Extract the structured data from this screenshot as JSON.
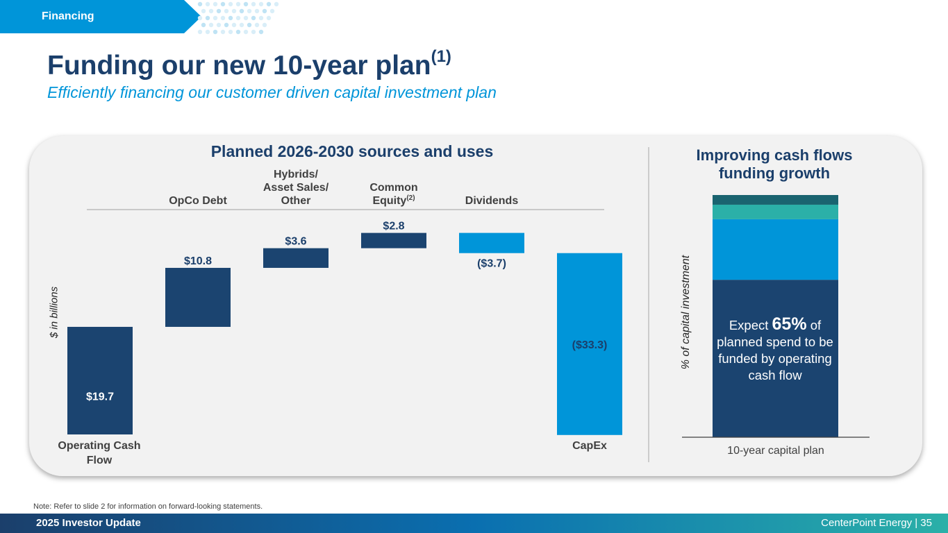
{
  "header": {
    "section_tag": "Financing",
    "title": "Funding our new 10-year plan",
    "title_footnote": "(1)",
    "subtitle": "Efficiently financing our customer driven capital investment plan"
  },
  "chart_data": [
    {
      "type": "waterfall",
      "title": "Planned 2026-2030 sources and uses",
      "ylabel": "$ in billions",
      "categories": [
        "Operating Cash Flow",
        "OpCo Debt",
        "Hybrids/ Asset Sales/ Other",
        "Common Equity",
        "Dividends",
        "CapEx"
      ],
      "values": [
        19.7,
        10.8,
        3.6,
        2.8,
        -3.7,
        -33.3
      ],
      "value_labels": [
        "$19.7",
        "$10.8",
        "$3.6",
        "$2.8",
        "($3.7)",
        "($33.3)"
      ],
      "top_labels": [
        "",
        "OpCo Debt",
        "Hybrids/\nAsset Sales/\nOther",
        "Common\nEquity",
        "Dividends",
        ""
      ],
      "top_label_footnotes": [
        "",
        "",
        "",
        "(2)",
        "",
        ""
      ],
      "bottom_labels": [
        "Operating Cash\nFlow",
        "",
        "",
        "",
        "",
        "CapEx"
      ],
      "colors": [
        "#1b4470",
        "#1b4470",
        "#1b4470",
        "#1b4470",
        "#0095d9",
        "#0095d9"
      ]
    },
    {
      "type": "stacked_bar",
      "title": "Improving cash flows funding growth",
      "ylabel": "% of capital investment",
      "categories": [
        "10-year capital plan"
      ],
      "series": [
        {
          "name": "Operating cash flow",
          "value": 65,
          "color": "#1b4470"
        },
        {
          "name": "OpCo debt",
          "value": 25,
          "color": "#0095d9"
        },
        {
          "name": "Hybrids/Asset sales/Other",
          "value": 6,
          "color": "#2bb0a8"
        },
        {
          "name": "Common equity",
          "value": 4,
          "color": "#1a6470"
        }
      ],
      "annotation": {
        "prefix": "Expect ",
        "highlight": "65%",
        "suffix": " of planned spend to be funded by operating cash flow"
      }
    }
  ],
  "footer": {
    "note": "Note: Refer to slide 2 for information on forward-looking statements.",
    "left": "2025 Investor Update",
    "right": "CenterPoint Energy | 35"
  },
  "colors": {
    "navy": "#1b3f6b",
    "accent_blue": "#0095d9",
    "teal": "#2bb0a8"
  }
}
